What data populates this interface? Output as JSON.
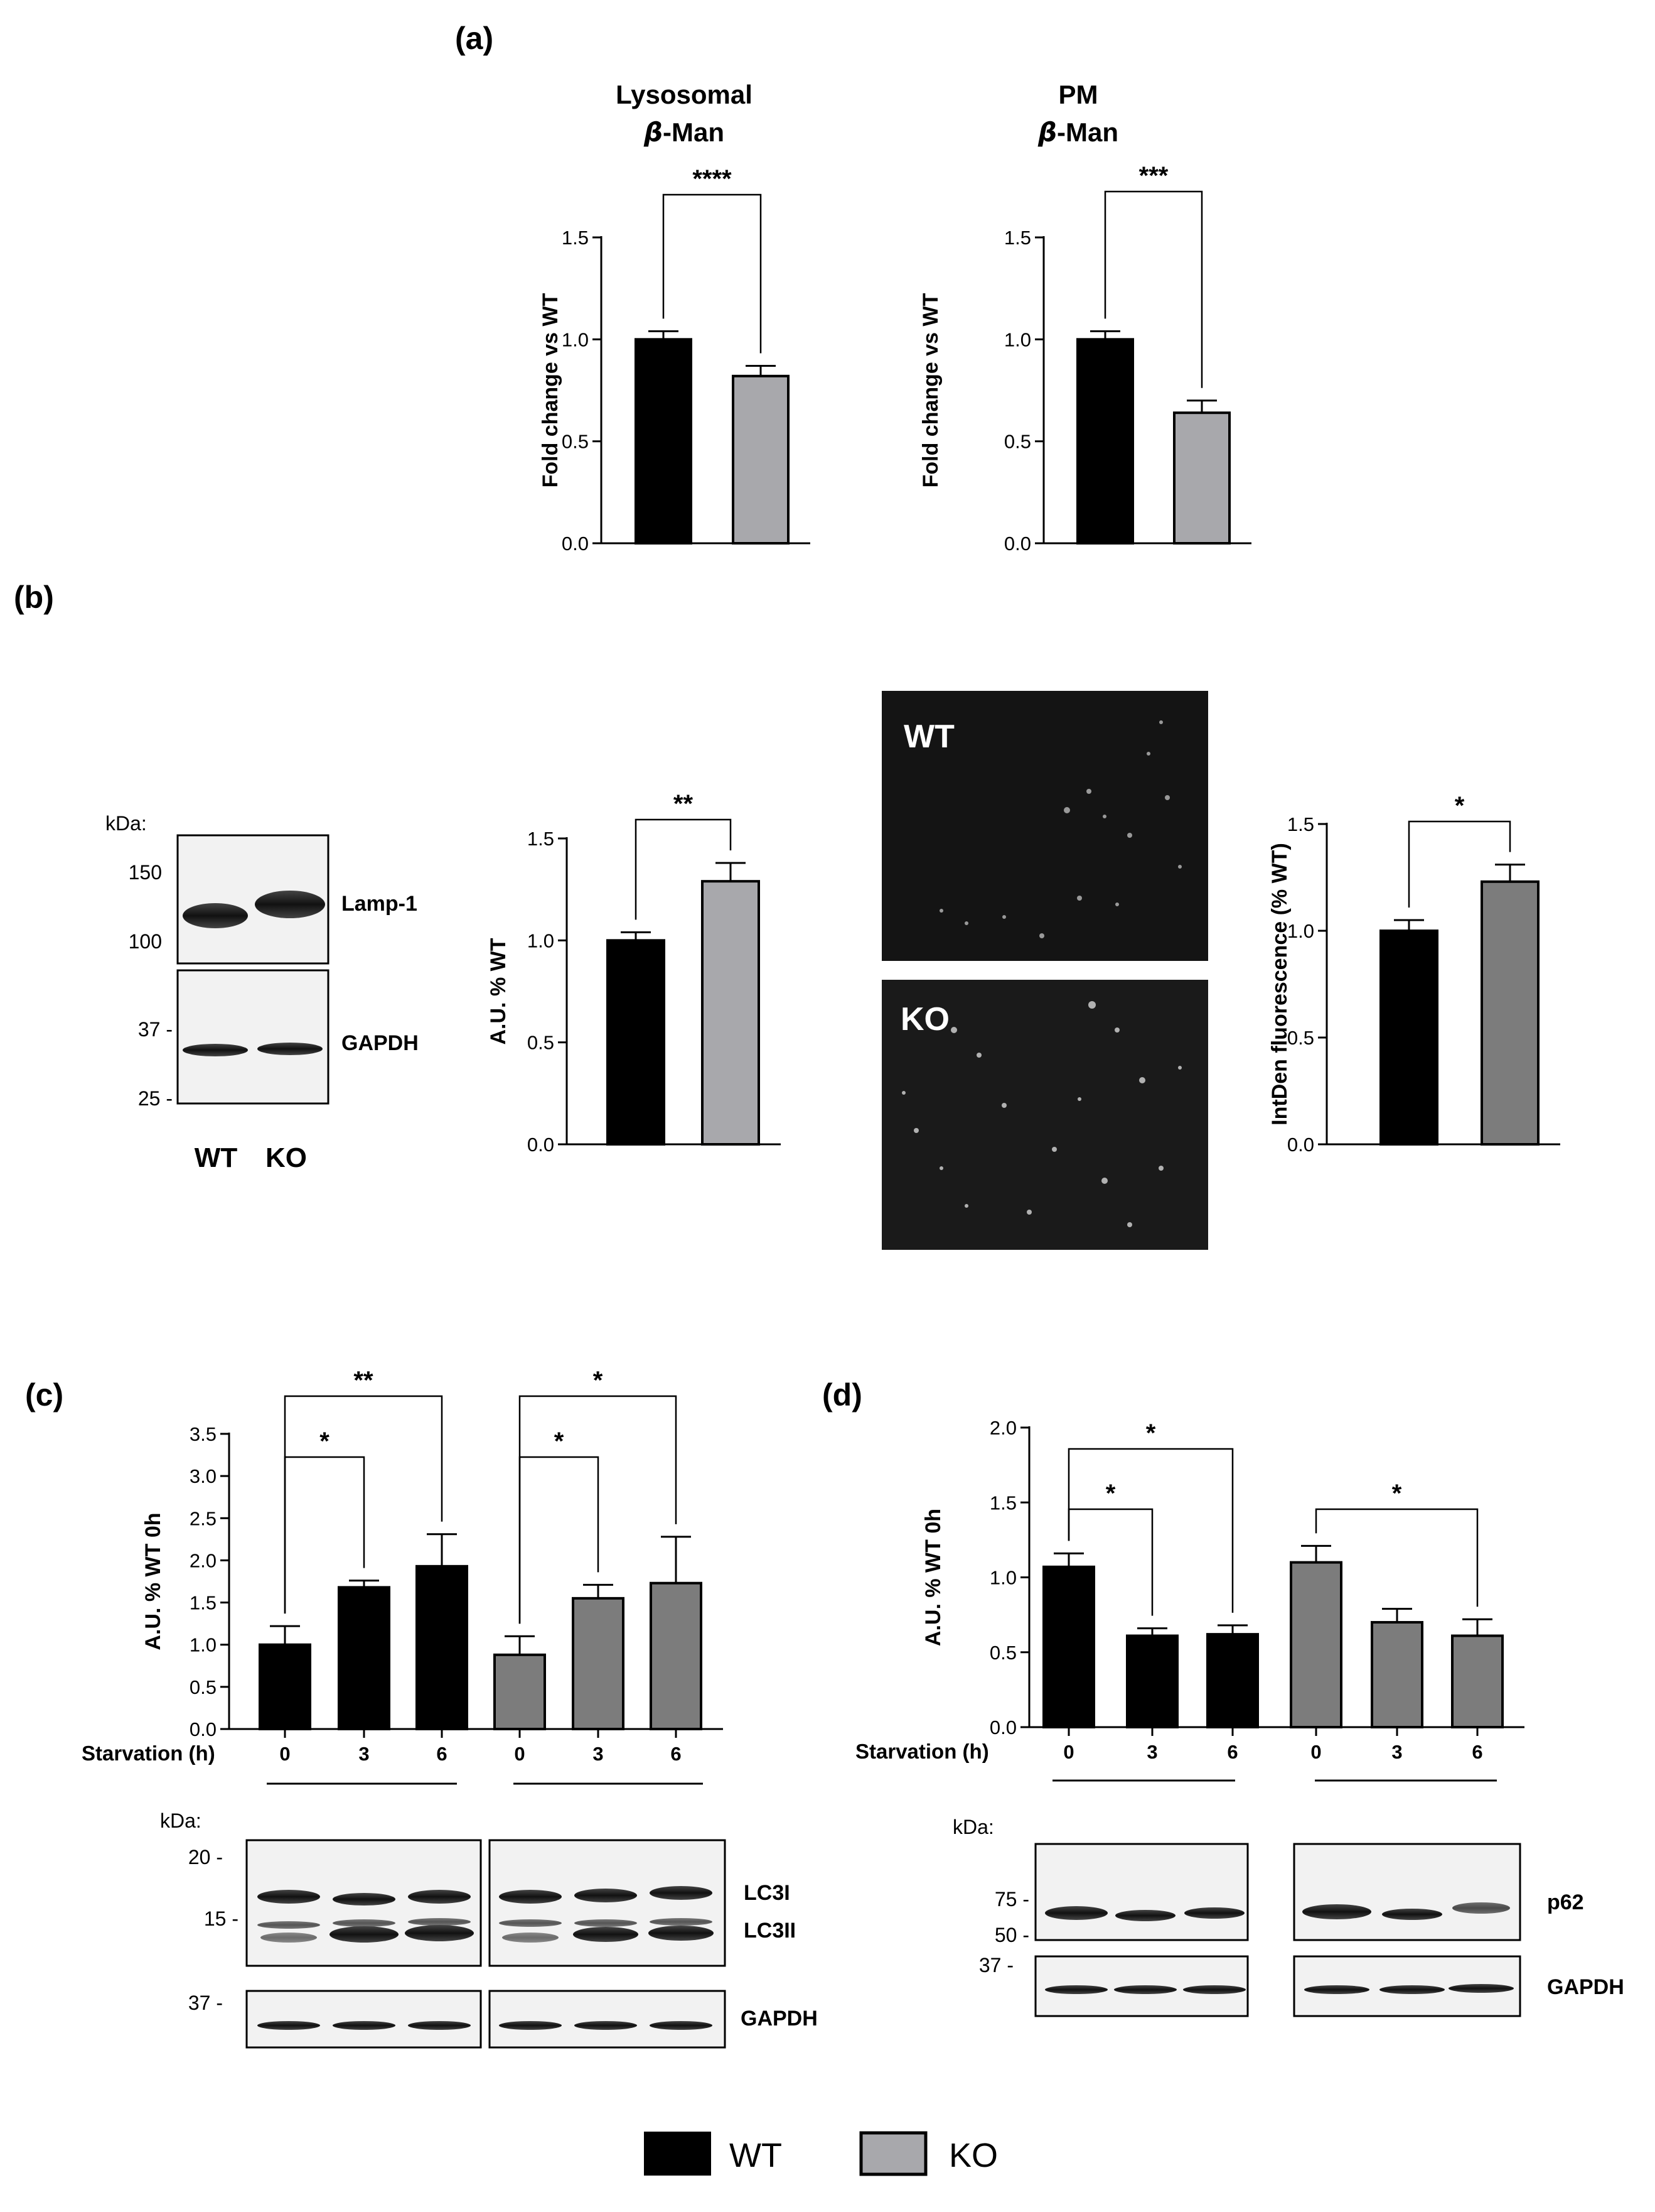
{
  "panel_labels": {
    "a": "(a)",
    "b": "(b)",
    "c": "(c)",
    "d": "(d)"
  },
  "colors": {
    "wt": "#000000",
    "ko_light": "#a8a8ac",
    "ko_dark": "#7c7c7c"
  },
  "blots": {
    "kda_label": "kDa:",
    "b": {
      "markers": [
        "150",
        "100",
        "37 -",
        "25 -"
      ],
      "bands": [
        "Lamp-1",
        "GAPDH"
      ],
      "lanes": [
        "WT",
        "KO"
      ]
    },
    "c": {
      "markers": [
        "20 -",
        "15 -",
        "37 -"
      ],
      "bands": [
        "LC3I",
        "LC3II",
        "GAPDH"
      ]
    },
    "d": {
      "markers": [
        "75 -",
        "50 -",
        "37 -"
      ],
      "bands": [
        "p62",
        "GAPDH"
      ]
    }
  },
  "micrographs": {
    "top_label": "WT",
    "bottom_label": "KO"
  },
  "legend": [
    {
      "label": "WT",
      "color": "#000000"
    },
    {
      "label": "KO",
      "color": "#a8a8ac"
    }
  ],
  "chart_data": [
    {
      "id": "a-lysosomal",
      "type": "bar",
      "title": "Lysosomal",
      "title_greek": "β",
      "title_rest": "-Man",
      "ylabel": "Fold change vs WT",
      "ylim": [
        0,
        1.5
      ],
      "yticks": [
        "0.0",
        "0.5",
        "1.0",
        "1.5"
      ],
      "categories": [
        "WT",
        "KO"
      ],
      "values": [
        1.0,
        0.82
      ],
      "errors": [
        0.04,
        0.05
      ],
      "colors": [
        "#000000",
        "#a8a8ac"
      ],
      "significance": [
        {
          "from": 0,
          "to": 1,
          "label": "****"
        }
      ]
    },
    {
      "id": "a-pm",
      "type": "bar",
      "title": "PM",
      "title_greek": "β",
      "title_rest": "-Man",
      "ylabel": "Fold change vs WT",
      "ylim": [
        0,
        1.5
      ],
      "yticks": [
        "0.0",
        "0.5",
        "1.0",
        "1.5"
      ],
      "categories": [
        "WT",
        "KO"
      ],
      "values": [
        1.0,
        0.64
      ],
      "errors": [
        0.04,
        0.06
      ],
      "colors": [
        "#000000",
        "#a8a8ac"
      ],
      "significance": [
        {
          "from": 0,
          "to": 1,
          "label": "***"
        }
      ]
    },
    {
      "id": "b-lamp1",
      "type": "bar",
      "ylabel": "A.U. % WT",
      "ylim": [
        0,
        1.5
      ],
      "yticks": [
        "0.0",
        "0.5",
        "1.0",
        "1.5"
      ],
      "categories": [
        "WT",
        "KO"
      ],
      "values": [
        1.0,
        1.29
      ],
      "errors": [
        0.04,
        0.09
      ],
      "colors": [
        "#000000",
        "#a8a8ac"
      ],
      "significance": [
        {
          "from": 0,
          "to": 1,
          "label": "**"
        }
      ]
    },
    {
      "id": "b-intden",
      "type": "bar",
      "ylabel": "IntDen fluorescence (% WT)",
      "ylim": [
        0,
        1.5
      ],
      "yticks": [
        "0.0",
        "0.5",
        "1.0",
        "1.5"
      ],
      "categories": [
        "WT",
        "KO"
      ],
      "values": [
        1.0,
        1.23
      ],
      "errors": [
        0.05,
        0.08
      ],
      "colors": [
        "#000000",
        "#7c7c7c"
      ],
      "significance": [
        {
          "from": 0,
          "to": 1,
          "label": "*"
        }
      ]
    },
    {
      "id": "c-lc3",
      "type": "bar",
      "ylabel": "A.U. % WT 0h",
      "xlabel": "Starvation (h)",
      "ylim": [
        0,
        3.5
      ],
      "yticks": [
        "0.0",
        "0.5",
        "1.0",
        "1.5",
        "2.0",
        "2.5",
        "3.0",
        "3.5"
      ],
      "categories": [
        "0",
        "3",
        "6",
        "0",
        "3",
        "6"
      ],
      "values": [
        1.0,
        1.68,
        1.93,
        0.88,
        1.55,
        1.73
      ],
      "errors": [
        0.22,
        0.08,
        0.38,
        0.22,
        0.16,
        0.55
      ],
      "colors": [
        "#000000",
        "#000000",
        "#000000",
        "#7c7c7c",
        "#7c7c7c",
        "#7c7c7c"
      ],
      "significance": [
        {
          "from": 0,
          "to": 1,
          "label": "*"
        },
        {
          "from": 0,
          "to": 2,
          "label": "**"
        },
        {
          "from": 3,
          "to": 4,
          "label": "*"
        },
        {
          "from": 3,
          "to": 5,
          "label": "*"
        }
      ]
    },
    {
      "id": "d-p62",
      "type": "bar",
      "ylabel": "A.U. % WT 0h",
      "xlabel": "Starvation (h)",
      "ylim": [
        0,
        2.0
      ],
      "yticks": [
        "0.0",
        "0.5",
        "1.0",
        "1.5",
        "2.0"
      ],
      "categories": [
        "0",
        "3",
        "6",
        "0",
        "3",
        "6"
      ],
      "values": [
        1.07,
        0.61,
        0.62,
        1.1,
        0.7,
        0.61
      ],
      "errors": [
        0.09,
        0.05,
        0.06,
        0.11,
        0.09,
        0.11
      ],
      "colors": [
        "#000000",
        "#000000",
        "#000000",
        "#7c7c7c",
        "#7c7c7c",
        "#7c7c7c"
      ],
      "significance": [
        {
          "from": 0,
          "to": 1,
          "label": "*"
        },
        {
          "from": 0,
          "to": 2,
          "label": "*"
        },
        {
          "from": 3,
          "to": 5,
          "label": "*"
        }
      ]
    }
  ]
}
